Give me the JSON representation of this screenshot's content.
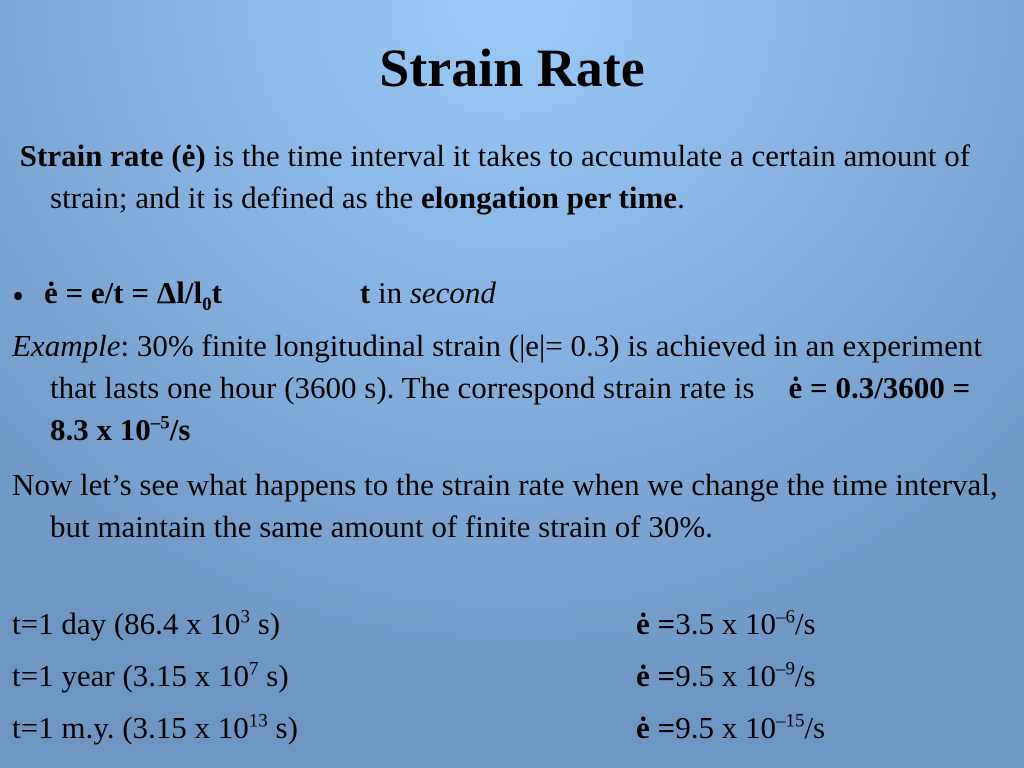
{
  "title": "Strain Rate",
  "definition": {
    "term": "Strain rate (ė)",
    "text": " is the time interval it takes to accumulate a certain amount of strain; and it is defined as the ",
    "emphasis": "elongation per time",
    "end": "."
  },
  "formula": {
    "expression": "ė = e/t = Δl/l",
    "subscript": "0",
    "variable": "t",
    "unit_variable": "t",
    "unit_text": " in ",
    "unit": "second"
  },
  "example": {
    "label": "Example",
    "text": ": 30% finite longitudinal strain (|e|= 0.3) is achieved in an experiment that lasts one hour (3600 s). The correspond strain rate is",
    "result": "ė = 0.3/3600 = 8.3 x 10",
    "exponent": "–5",
    "result_unit": "/s"
  },
  "discussion": "Now let’s see what happens to the strain rate when we change the time interval, but maintain the same amount of finite strain of 30%.",
  "cases": [
    {
      "interval": "t=1 day (86.4 x 10",
      "interval_exponent": "3",
      "interval_unit": " s)",
      "rate_symbol": "ė =",
      "rate": "3.5 x 10",
      "rate_exponent": "–6",
      "rate_unit": "/s"
    },
    {
      "interval": "t=1 year (3.15 x 10",
      "interval_exponent": "7",
      "interval_unit": " s)",
      "rate_symbol": "ė =",
      "rate": "9.5 x 10",
      "rate_exponent": "–9",
      "rate_unit": "/s"
    },
    {
      "interval": "t=1 m.y. (3.15 x 10",
      "interval_exponent": "13",
      "interval_unit": " s)",
      "rate_symbol": "ė =",
      "rate": "9.5 x 10",
      "rate_exponent": "–15",
      "rate_unit": "/s"
    }
  ]
}
